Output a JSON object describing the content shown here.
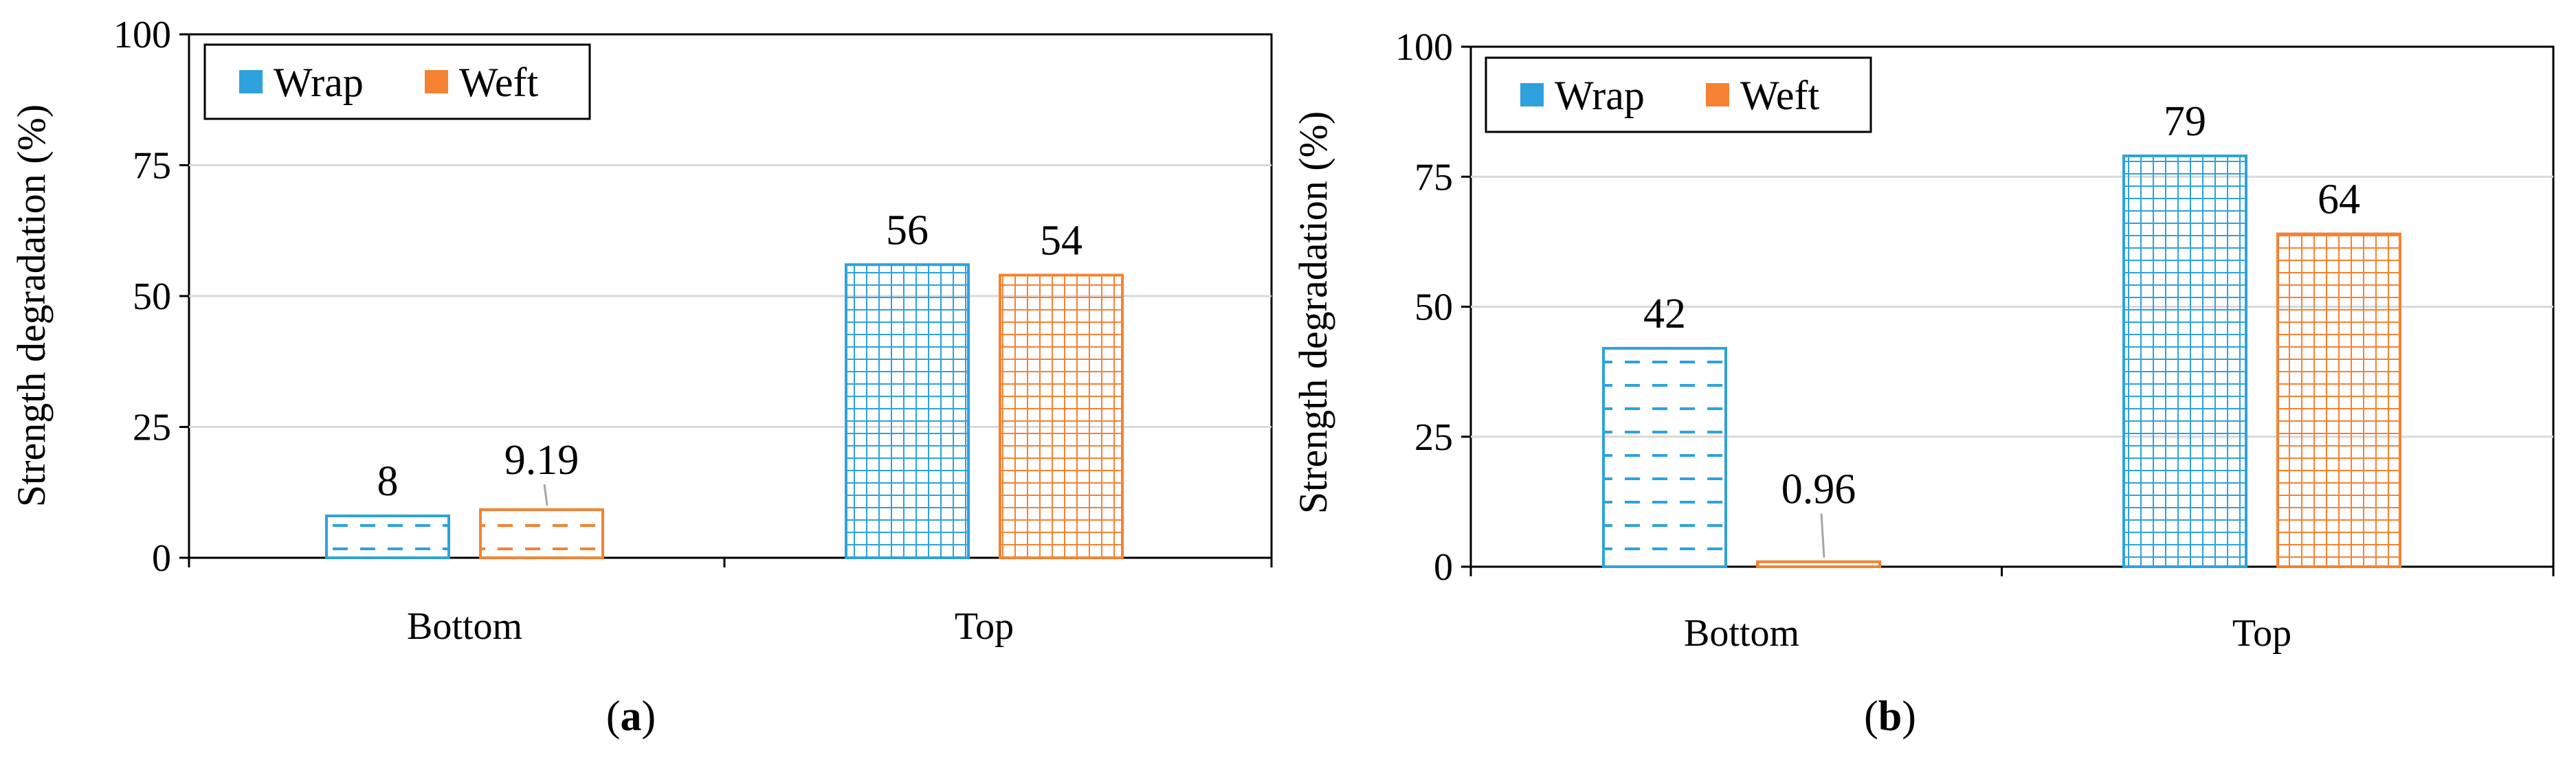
{
  "colors": {
    "wrap": "#2EA2DC",
    "weft": "#F58232",
    "grid": "#D9D9D9",
    "axis": "#000000"
  },
  "chart_data": [
    {
      "type": "bar",
      "panel_label": "a",
      "categories": [
        "Bottom",
        "Top"
      ],
      "series": [
        {
          "name": "Wrap",
          "values": [
            8,
            56
          ],
          "labels": [
            "8",
            "56"
          ],
          "patterns": [
            "dash",
            "grid"
          ]
        },
        {
          "name": "Weft",
          "values": [
            9.19,
            54
          ],
          "labels": [
            "9.19",
            "54"
          ],
          "patterns": [
            "dash",
            "grid"
          ]
        }
      ],
      "ylabel": "Strength degradation (%)",
      "xlabel": "",
      "ylim": [
        0,
        100
      ],
      "yticks": [
        "0",
        "25",
        "50",
        "75",
        "100"
      ],
      "grid": true,
      "legend": "top-left"
    },
    {
      "type": "bar",
      "panel_label": "b",
      "categories": [
        "Bottom",
        "Top"
      ],
      "series": [
        {
          "name": "Wrap",
          "values": [
            42,
            79
          ],
          "labels": [
            "42",
            "79"
          ],
          "patterns": [
            "dash",
            "grid"
          ]
        },
        {
          "name": "Weft",
          "values": [
            0.96,
            64
          ],
          "labels": [
            "0.96",
            "64"
          ],
          "patterns": [
            "dash",
            "grid"
          ]
        }
      ],
      "ylabel": "Strength degradation (%)",
      "xlabel": "",
      "ylim": [
        0,
        100
      ],
      "yticks": [
        "0",
        "25",
        "50",
        "75",
        "100"
      ],
      "grid": true,
      "legend": "top-left"
    }
  ]
}
